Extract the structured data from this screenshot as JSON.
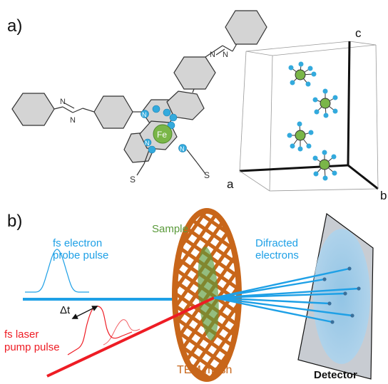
{
  "panel_a": {
    "label": "a)",
    "atom_fe": "Fe",
    "atom_n": "N",
    "atom_s": "S",
    "axis_c": "c",
    "axis_a": "a",
    "axis_b": "b"
  },
  "panel_b": {
    "label": "b)",
    "probe_line1": "fs electron",
    "probe_line2": "probe pulse",
    "delay": "Δt",
    "pump_line1": "fs laser",
    "pump_line2": "pump pulse",
    "sample": "Sample",
    "mesh": "TEM mesh",
    "diffracted_line1": "Difracted",
    "diffracted_line2": "electrons",
    "detector": "Detector"
  },
  "colors": {
    "electron_blue": "#1ea0e6",
    "laser_red": "#ee1c24",
    "mesh_orange": "#c8661a",
    "sample_green": "#5a9a3a",
    "fe_green": "#7ab648",
    "n_blue": "#33aadd",
    "ring_gray": "#d4d4d4"
  }
}
